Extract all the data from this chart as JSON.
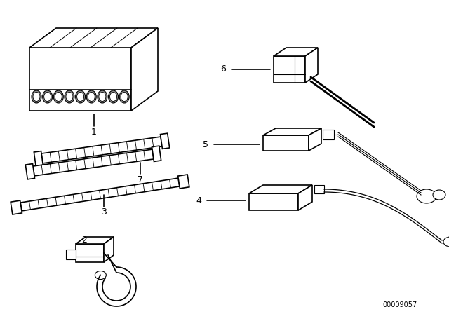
{
  "bg_color": "#ffffff",
  "line_color": "#000000",
  "part_number_text": "00009057",
  "figsize": [
    6.4,
    4.48
  ],
  "dpi": 100
}
